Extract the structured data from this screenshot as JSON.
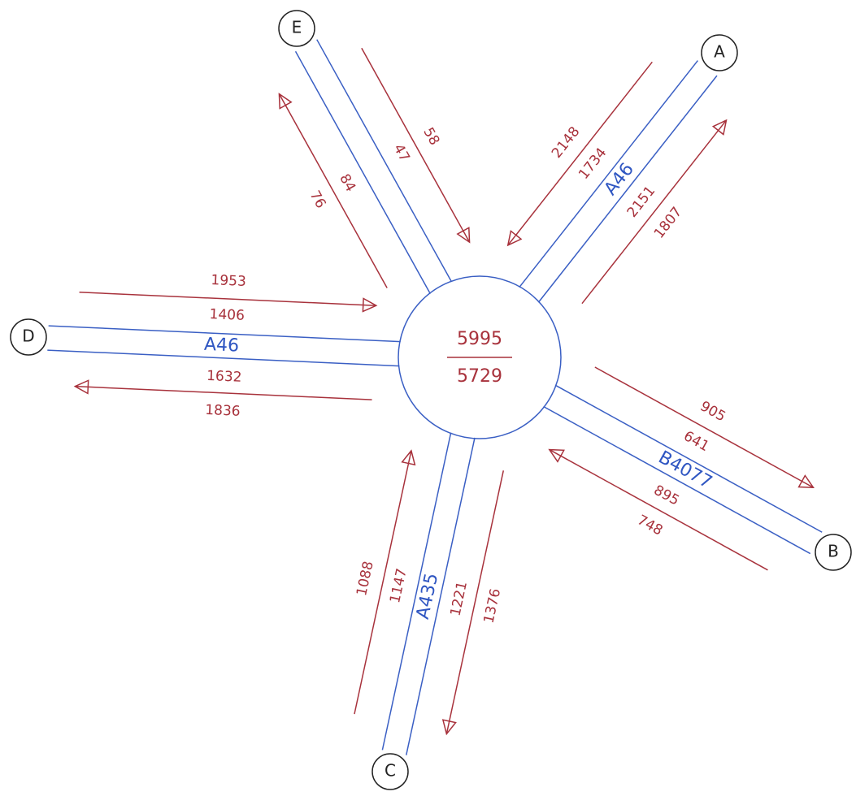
{
  "center": {
    "entering": 5995,
    "exiting": 5729
  },
  "arms": [
    {
      "node": "A",
      "road": "A46",
      "flows": [
        [
          2148,
          1734
        ],
        [
          1807,
          2151
        ]
      ]
    },
    {
      "node": "B",
      "road": "B4077",
      "flows": [
        [
          905,
          641
        ],
        [
          748,
          895
        ]
      ]
    },
    {
      "node": "C",
      "road": "A435",
      "flows": [
        [
          1088,
          1147
        ],
        [
          1376,
          1221
        ]
      ]
    },
    {
      "node": "D",
      "road": "A46",
      "flows": [
        [
          1953,
          1406
        ],
        [
          1836,
          1632
        ]
      ]
    },
    {
      "node": "E",
      "flows": [
        [
          76,
          84
        ],
        [
          58,
          47
        ]
      ]
    }
  ]
}
